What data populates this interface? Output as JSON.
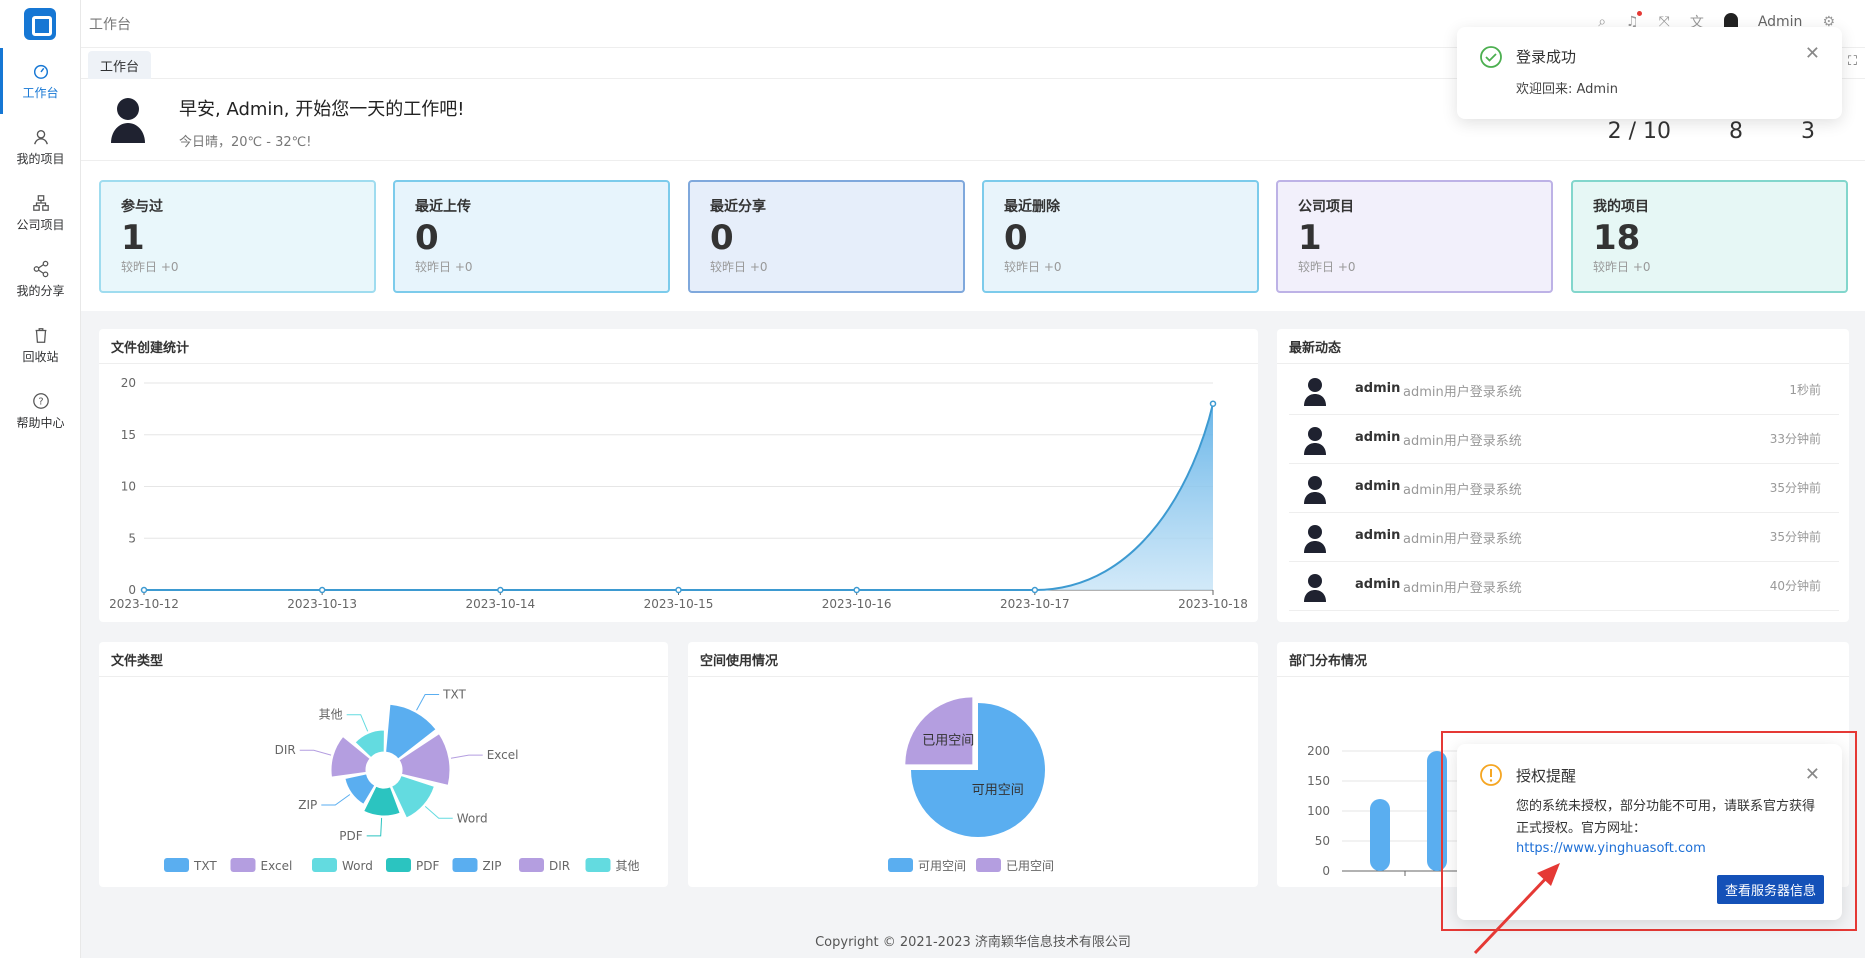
{
  "app": {
    "breadcrumb": "工作台",
    "user": "Admin",
    "active_tab": "工作台"
  },
  "sidebar": {
    "items": [
      {
        "label": "工作台",
        "icon": "dashboard-icon"
      },
      {
        "label": "我的项目",
        "icon": "user-icon"
      },
      {
        "label": "公司项目",
        "icon": "org-icon"
      },
      {
        "label": "我的分享",
        "icon": "share-icon"
      },
      {
        "label": "回收站",
        "icon": "trash-icon"
      },
      {
        "label": "帮助中心",
        "icon": "help-icon"
      }
    ]
  },
  "welcome": {
    "greeting": "早安, Admin, 开始您一天的工作吧!",
    "weather": "今日晴，20℃ - 32℃!",
    "stats": [
      "2 / 10",
      "8",
      "3"
    ]
  },
  "cards": [
    {
      "title": "参与过",
      "value": "1",
      "sub": "较昨日 +0",
      "border": "#9fdcef",
      "bg": "#e9f7fb"
    },
    {
      "title": "最近上传",
      "value": "0",
      "sub": "较昨日 +0",
      "border": "#7ccbeb",
      "bg": "#e7f4fc"
    },
    {
      "title": "最近分享",
      "value": "0",
      "sub": "较昨日 +0",
      "border": "#7fa8dc",
      "bg": "#e6eefa"
    },
    {
      "title": "最近删除",
      "value": "0",
      "sub": "较昨日 +0",
      "border": "#7ccbeb",
      "bg": "#e8f4fb"
    },
    {
      "title": "公司项目",
      "value": "1",
      "sub": "较昨日 +0",
      "border": "#bdb2e6",
      "bg": "#f2f0fb"
    },
    {
      "title": "我的项目",
      "value": "18",
      "sub": "较昨日 +0",
      "border": "#82d6cc",
      "bg": "#e6f7f5"
    }
  ],
  "panels": {
    "file_stats_title": "文件创建统计",
    "activity_title": "最新动态",
    "file_types_title": "文件类型",
    "space_title": "空间使用情况",
    "dept_title": "部门分布情况"
  },
  "activity": [
    {
      "name": "admin",
      "msg": "admin用户登录系统",
      "time": "1秒前"
    },
    {
      "name": "admin",
      "msg": "admin用户登录系统",
      "time": "33分钟前"
    },
    {
      "name": "admin",
      "msg": "admin用户登录系统",
      "time": "35分钟前"
    },
    {
      "name": "admin",
      "msg": "admin用户登录系统",
      "time": "35分钟前"
    },
    {
      "name": "admin",
      "msg": "admin用户登录系统",
      "time": "40分钟前"
    }
  ],
  "chart_data": [
    {
      "type": "area",
      "title": "文件创建统计",
      "x": [
        "2023-10-12",
        "2023-10-13",
        "2023-10-14",
        "2023-10-15",
        "2023-10-16",
        "2023-10-17",
        "2023-10-18"
      ],
      "values": [
        0,
        0,
        0,
        0,
        0,
        0,
        18
      ],
      "ylim": [
        0,
        20
      ],
      "yticks": [
        0,
        5,
        10,
        15,
        20
      ],
      "color": "#3d9ad1"
    },
    {
      "type": "pie",
      "title": "文件类型",
      "categories": [
        "TXT",
        "Excel",
        "Word",
        "PDF",
        "ZIP",
        "DIR",
        "其他"
      ],
      "colors": [
        "#5aaef0",
        "#b49ee0",
        "#63dbe0",
        "#2bc4c0",
        "#5aaef0",
        "#b49ee0",
        "#63dbe0"
      ]
    },
    {
      "type": "pie",
      "title": "空间使用情况",
      "categories": [
        "可用空间",
        "已用空间"
      ],
      "values": [
        75,
        25
      ],
      "colors": [
        "#5aaef0",
        "#b49ee0"
      ]
    },
    {
      "type": "bar",
      "title": "部门分布情况",
      "yticks": [
        0,
        50,
        100,
        150,
        200
      ],
      "ylim": [
        0,
        200
      ],
      "values": [
        120,
        200
      ],
      "color": "#5aaef0"
    }
  ],
  "toasts": {
    "login": {
      "title": "登录成功",
      "body": "欢迎回来: Admin"
    },
    "license": {
      "title": "授权提醒",
      "body": "您的系统未授权，部分功能不可用，请联系官方获得正式授权。官方网址：",
      "link": "https://www.yinghuasoft.com",
      "button": "查看服务器信息"
    }
  },
  "footer": "Copyright © 2021-2023 济南颖华信息技术有限公司"
}
